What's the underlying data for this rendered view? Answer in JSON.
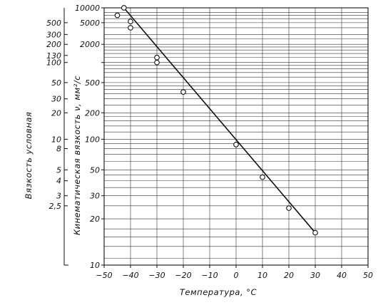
{
  "chart_data": {
    "type": "scatter",
    "xlabel": "Температура, °C",
    "ylabel": "Кинематическая вязкость ν, мм²/с",
    "ylabel_secondary": "Вязкость условная",
    "xlim": [
      -50,
      50
    ],
    "ylim": [
      10,
      10000
    ],
    "y_scale": "reciprocal-log",
    "grid": true,
    "x_ticks": [
      -50,
      -40,
      -30,
      -20,
      -10,
      0,
      10,
      20,
      30,
      40,
      50
    ],
    "x_tick_labels": [
      "−50",
      "−40",
      "−30",
      "−20",
      "−10",
      "0",
      "10",
      "20",
      "30",
      "40",
      "50"
    ],
    "y_ticks": [
      {
        "value": 10000,
        "label": "10000"
      },
      {
        "value": 5000,
        "label": "5000"
      },
      {
        "value": 2000,
        "label": "2000"
      },
      {
        "value": 1000,
        "label": ""
      },
      {
        "value": 500,
        "label": "500"
      },
      {
        "value": 200,
        "label": "200"
      },
      {
        "value": 100,
        "label": "100"
      },
      {
        "value": 50,
        "label": "50"
      },
      {
        "value": 30,
        "label": "30"
      },
      {
        "value": 20,
        "label": "20"
      },
      {
        "value": 10,
        "label": "10"
      }
    ],
    "y_grid": [
      10000,
      8000,
      7000,
      6000,
      5000,
      4000,
      3000,
      2500,
      2000,
      1800,
      1600,
      1400,
      1200,
      1000,
      900,
      800,
      700,
      600,
      500,
      450,
      400,
      350,
      300,
      250,
      200,
      180,
      160,
      140,
      120,
      100,
      90,
      80,
      70,
      60,
      50,
      45,
      40,
      35,
      30,
      25,
      20,
      17,
      15,
      13,
      11,
      10
    ],
    "secondary_ticks": [
      {
        "label": "500",
        "value": 5000
      },
      {
        "label": "300",
        "value": 3000
      },
      {
        "label": "200",
        "value": 2000
      },
      {
        "label": "130",
        "value": 1300
      },
      {
        "label": "100",
        "value": 1000
      },
      {
        "label": "50",
        "value": 500
      },
      {
        "label": "30",
        "value": 300
      },
      {
        "label": "20",
        "value": 200
      },
      {
        "label": "10",
        "value": 100
      },
      {
        "label": "8",
        "value": 80
      },
      {
        "label": "5",
        "value": 50
      },
      {
        "label": "4",
        "value": 40
      },
      {
        "label": "3",
        "value": 30
      },
      {
        "label": "2,5",
        "value": 25
      }
    ],
    "series": [
      {
        "type": "scatter",
        "x": [
          -42.5,
          -45,
          -40,
          -40,
          -30,
          -30,
          -20,
          0,
          10,
          20,
          30
        ],
        "y": [
          10000,
          7000,
          5300,
          4000,
          1200,
          1000,
          370,
          88,
          43,
          24,
          16
        ]
      },
      {
        "type": "line",
        "x": [
          -42.5,
          30
        ],
        "y": [
          10000,
          16
        ]
      }
    ]
  }
}
